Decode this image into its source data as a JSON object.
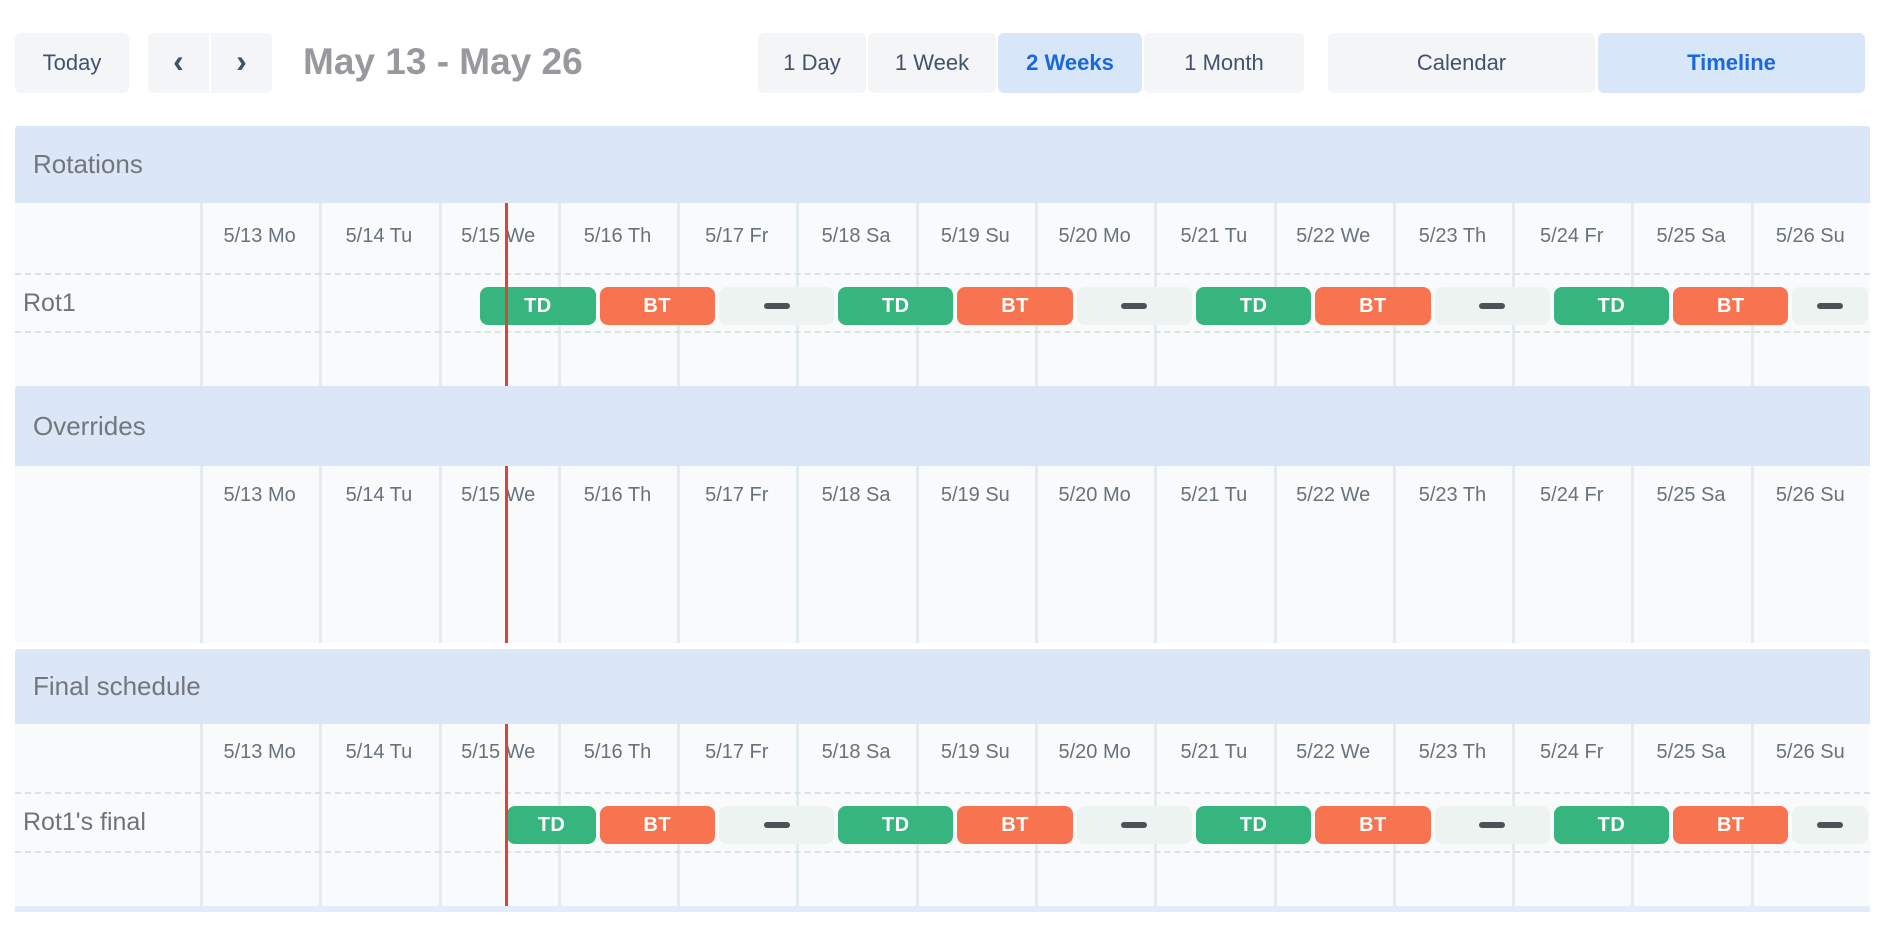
{
  "toolbar": {
    "today_label": "Today",
    "prev_icon": "‹",
    "next_icon": "›",
    "range_title": "May 13 - May 26",
    "view_options": [
      {
        "label": "1 Day",
        "selected": false
      },
      {
        "label": "1 Week",
        "selected": false
      },
      {
        "label": "2 Weeks",
        "selected": true
      },
      {
        "label": "1 Month",
        "selected": false
      }
    ],
    "mode_options": [
      {
        "label": "Calendar",
        "selected": false
      },
      {
        "label": "Timeline",
        "selected": true
      }
    ]
  },
  "timeline": {
    "dates": [
      "5/13 Mo",
      "5/14 Tu",
      "5/15 We",
      "5/16 Th",
      "5/17 Fr",
      "5/18 Sa",
      "5/19 Su",
      "5/20 Mo",
      "5/21 Tu",
      "5/22 We",
      "5/23 Th",
      "5/24 Fr",
      "5/25 Sa",
      "5/26 Su"
    ],
    "days_visible": 14,
    "now_day": 2.561,
    "colors": {
      "shift_td": "#36b57e",
      "shift_bt": "#f8734f",
      "gap_strip": "#edf3f0",
      "section_band": "#dbe6f7",
      "now_line": "#da4538",
      "selected_button_bg": "#d8e6fa",
      "selected_button_text": "#1a68da"
    }
  },
  "sections": [
    {
      "title": "Rotations",
      "rows": [
        {
          "label": "Rot1",
          "blocks": [
            {
              "kind": "shift",
              "label": "TD",
              "start": 2.333,
              "end": 3.333
            },
            {
              "kind": "shift",
              "label": "BT",
              "start": 3.333,
              "end": 4.333
            },
            {
              "kind": "gap",
              "start": 4.333,
              "end": 5.333
            },
            {
              "kind": "shift",
              "label": "TD",
              "start": 5.333,
              "end": 6.333
            },
            {
              "kind": "shift",
              "label": "BT",
              "start": 6.333,
              "end": 7.333
            },
            {
              "kind": "gap",
              "start": 7.333,
              "end": 8.333
            },
            {
              "kind": "shift",
              "label": "TD",
              "start": 8.333,
              "end": 9.333
            },
            {
              "kind": "shift",
              "label": "BT",
              "start": 9.333,
              "end": 10.333
            },
            {
              "kind": "gap",
              "start": 10.333,
              "end": 11.333
            },
            {
              "kind": "shift",
              "label": "TD",
              "start": 11.333,
              "end": 12.333
            },
            {
              "kind": "shift",
              "label": "BT",
              "start": 12.333,
              "end": 13.333
            },
            {
              "kind": "gap",
              "start": 13.333,
              "end": 14
            }
          ]
        }
      ]
    },
    {
      "title": "Overrides",
      "rows": []
    },
    {
      "title": "Final schedule",
      "rows": [
        {
          "label": "Rot1's final",
          "blocks": [
            {
              "kind": "shift",
              "label": "TD",
              "start": 2.561,
              "end": 3.333
            },
            {
              "kind": "shift",
              "label": "BT",
              "start": 3.333,
              "end": 4.333
            },
            {
              "kind": "gap",
              "start": 4.333,
              "end": 5.333
            },
            {
              "kind": "shift",
              "label": "TD",
              "start": 5.333,
              "end": 6.333
            },
            {
              "kind": "shift",
              "label": "BT",
              "start": 6.333,
              "end": 7.333
            },
            {
              "kind": "gap",
              "start": 7.333,
              "end": 8.333
            },
            {
              "kind": "shift",
              "label": "TD",
              "start": 8.333,
              "end": 9.333
            },
            {
              "kind": "shift",
              "label": "BT",
              "start": 9.333,
              "end": 10.333
            },
            {
              "kind": "gap",
              "start": 10.333,
              "end": 11.333
            },
            {
              "kind": "shift",
              "label": "TD",
              "start": 11.333,
              "end": 12.333
            },
            {
              "kind": "shift",
              "label": "BT",
              "start": 12.333,
              "end": 13.333
            },
            {
              "kind": "gap",
              "start": 13.333,
              "end": 14
            }
          ]
        }
      ]
    }
  ]
}
